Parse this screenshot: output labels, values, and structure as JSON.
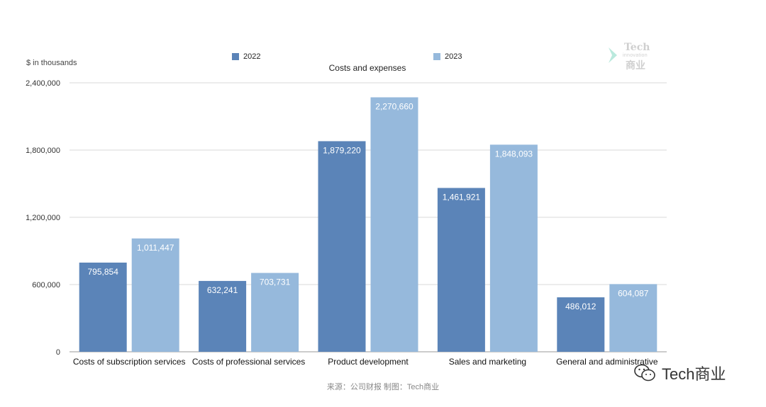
{
  "chart_data": {
    "type": "bar",
    "title": "Costs and expenses",
    "ylabel": "$ in thousands",
    "categories": [
      "Costs of subscription services",
      "Costs of professional services",
      "Product development",
      "Sales and marketing",
      "General and administrative"
    ],
    "series": [
      {
        "name": "2022",
        "color": "#5b84b8",
        "values": [
          795854,
          632241,
          1879220,
          1461921,
          486012
        ],
        "labels": [
          "795,854",
          "632,241",
          "1,879,220",
          "1,461,921",
          "486,012"
        ]
      },
      {
        "name": "2023",
        "color": "#96b9dc",
        "values": [
          1011447,
          703731,
          2270660,
          1848093,
          604087
        ],
        "labels": [
          "1,011,447",
          "703,731",
          "2,270,660",
          "1,848,093",
          "604,087"
        ]
      }
    ],
    "ylim": [
      0,
      2400000
    ],
    "yticks": [
      0,
      600000,
      1200000,
      1800000,
      2400000
    ],
    "ytick_labels": [
      "0",
      "600,000",
      "1,200,000",
      "1,800,000",
      "2,400,000"
    ],
    "grid": true,
    "legend_position": "top"
  },
  "source_note": "来源：公司财报 制图：Tech商业",
  "watermark": {
    "tech": "Tech",
    "innovation": "innovation",
    "cn": "商业"
  },
  "account": {
    "name": "Tech商业",
    "icon": "wechat-icon"
  }
}
